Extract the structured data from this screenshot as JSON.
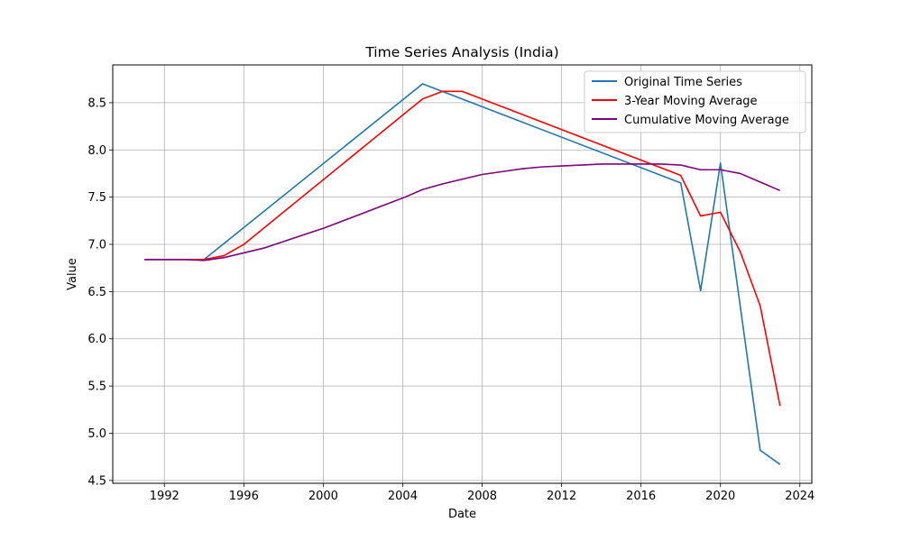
{
  "chart_data": {
    "type": "line",
    "title": "Time Series Analysis (India)",
    "xlabel": "Date",
    "ylabel": "Value",
    "xlim": [
      1989.4,
      2024.6
    ],
    "ylim": [
      4.47,
      8.9
    ],
    "grid": true,
    "legend_position": "top-right",
    "x_ticks": [
      1992,
      1996,
      2000,
      2004,
      2008,
      2012,
      2016,
      2020,
      2024
    ],
    "x_tick_labels": [
      "1992",
      "1996",
      "2000",
      "2004",
      "2008",
      "2012",
      "2016",
      "2020",
      "2024"
    ],
    "y_ticks": [
      4.5,
      5.0,
      5.5,
      6.0,
      6.5,
      7.0,
      7.5,
      8.0,
      8.5
    ],
    "y_tick_labels": [
      "4.5",
      "5.0",
      "5.5",
      "6.0",
      "6.5",
      "7.0",
      "7.5",
      "8.0",
      "8.5"
    ],
    "series": [
      {
        "name": "Original Time Series",
        "color": "#1f77b4",
        "points": [
          [
            1991,
            6.84
          ],
          [
            1994,
            6.84
          ],
          [
            2005,
            8.7
          ],
          [
            2018,
            7.65
          ],
          [
            2019,
            6.51
          ],
          [
            2020,
            7.86
          ],
          [
            2022,
            4.82
          ],
          [
            2023,
            4.67
          ]
        ]
      },
      {
        "name": "3-Year Moving Average",
        "color": "#ff0000",
        "points": [
          [
            1991,
            6.84
          ],
          [
            1994,
            6.84
          ],
          [
            1995,
            6.88
          ],
          [
            1996,
            7.0
          ],
          [
            2005,
            8.54
          ],
          [
            2006,
            8.62
          ],
          [
            2007,
            8.62
          ],
          [
            2018,
            7.73
          ],
          [
            2019,
            7.3
          ],
          [
            2020,
            7.34
          ],
          [
            2021,
            6.92
          ],
          [
            2022,
            6.35
          ],
          [
            2023,
            5.29
          ]
        ]
      },
      {
        "name": "Cumulative Moving Average",
        "color": "#800080",
        "points": [
          [
            1991,
            6.84
          ],
          [
            1993,
            6.84
          ],
          [
            1994,
            6.83
          ],
          [
            1995,
            6.86
          ],
          [
            1996,
            6.91
          ],
          [
            1997,
            6.96
          ],
          [
            1998,
            7.03
          ],
          [
            1999,
            7.1
          ],
          [
            2000,
            7.17
          ],
          [
            2001,
            7.25
          ],
          [
            2002,
            7.33
          ],
          [
            2003,
            7.41
          ],
          [
            2004,
            7.49
          ],
          [
            2005,
            7.58
          ],
          [
            2006,
            7.64
          ],
          [
            2007,
            7.69
          ],
          [
            2008,
            7.74
          ],
          [
            2009,
            7.77
          ],
          [
            2010,
            7.8
          ],
          [
            2011,
            7.82
          ],
          [
            2012,
            7.83
          ],
          [
            2013,
            7.84
          ],
          [
            2014,
            7.85
          ],
          [
            2015,
            7.85
          ],
          [
            2016,
            7.85
          ],
          [
            2017,
            7.85
          ],
          [
            2018,
            7.84
          ],
          [
            2019,
            7.79
          ],
          [
            2020,
            7.79
          ],
          [
            2021,
            7.75
          ],
          [
            2022,
            7.66
          ],
          [
            2023,
            7.57
          ]
        ]
      }
    ]
  }
}
